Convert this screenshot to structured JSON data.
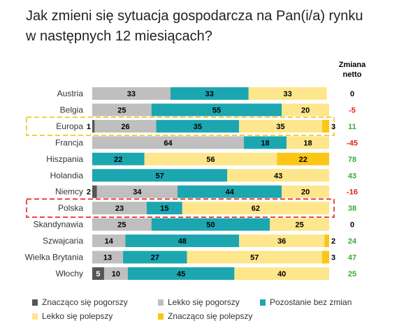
{
  "chart_data": {
    "type": "bar",
    "stacked": true,
    "orientation": "horizontal",
    "title_lines": [
      "Jak zmieni się sytuacja gospodarcza na Pan(i/a) rynku",
      "w następnych 12 miesiącach?"
    ],
    "net_header_lines": [
      "Zmiana",
      "netto"
    ],
    "categories": [
      "Austria",
      "Belgia",
      "Europa",
      "Francja",
      "Hiszpania",
      "Holandia",
      "Niemcy",
      "Polska",
      "Skandynawia",
      "Szwajcaria",
      "Wielka Brytania",
      "Włochy"
    ],
    "series": [
      {
        "name": "Znacząco się pogorszy",
        "color": "#555555",
        "values": [
          0,
          0,
          1,
          0,
          0,
          0,
          2,
          0,
          0,
          0,
          0,
          5
        ]
      },
      {
        "name": "Lekko się pogorszy",
        "color": "#bfbfbf",
        "values": [
          33,
          25,
          26,
          64,
          0,
          0,
          34,
          23,
          25,
          14,
          13,
          10
        ]
      },
      {
        "name": "Pozostanie bez zmian",
        "color": "#1ca6b0",
        "values": [
          33,
          55,
          35,
          18,
          22,
          57,
          44,
          15,
          50,
          48,
          27,
          45
        ]
      },
      {
        "name": "Lekko się polepszy",
        "color": "#fde68c",
        "values": [
          33,
          20,
          35,
          18,
          56,
          43,
          20,
          62,
          25,
          36,
          57,
          40
        ]
      },
      {
        "name": "Znacząco się polepszy",
        "color": "#fcc614",
        "values": [
          0,
          0,
          3,
          0,
          22,
          0,
          0,
          0,
          0,
          2,
          3,
          0
        ]
      }
    ],
    "net_change": [
      "0",
      "-5",
      "11",
      "-45",
      "78",
      "43",
      "-16",
      "38",
      "0",
      "24",
      "47",
      "25"
    ],
    "net_colors": {
      "positive": "#3aaa35",
      "negative": "#e2231a",
      "zero": "#000000"
    },
    "highlights": [
      {
        "category": "Europa",
        "color": "#f0c419"
      },
      {
        "category": "Polska",
        "color": "#e2231a"
      }
    ],
    "xlim": [
      0,
      100
    ],
    "legend_position": "bottom",
    "grid": false
  }
}
